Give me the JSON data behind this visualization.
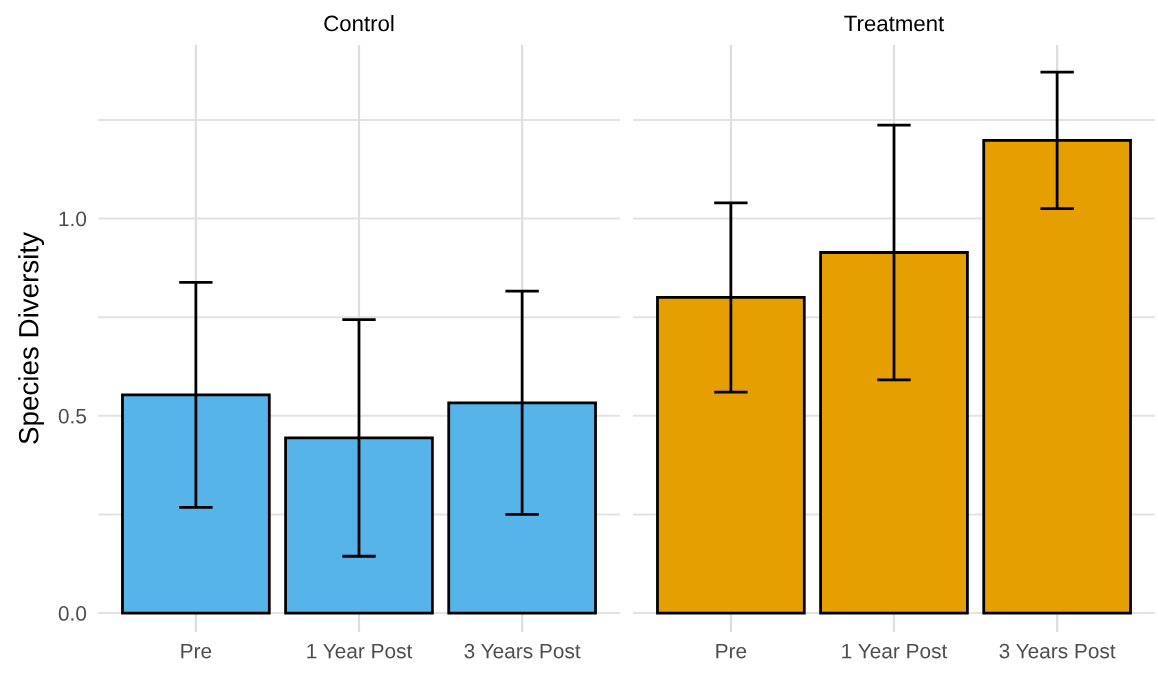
{
  "chart_data": [
    {
      "type": "bar",
      "title": "Control",
      "ylabel": "Species Diversity",
      "categories": [
        "Pre",
        "1 Year Post",
        "3 Years Post"
      ],
      "values": [
        0.553,
        0.444,
        0.533
      ],
      "errors": [
        0.285,
        0.3,
        0.283
      ],
      "color": "#56b4e9",
      "ylim": [
        -0.048,
        1.44
      ],
      "yticks": [
        {
          "value": 0,
          "label": "0.0"
        },
        {
          "value": 0.25,
          "label": null
        },
        {
          "value": 0.5,
          "label": "0.5"
        },
        {
          "value": 0.75,
          "label": null
        },
        {
          "value": 1.0,
          "label": "1.0"
        },
        {
          "value": 1.25,
          "label": null
        }
      ],
      "grid": true
    },
    {
      "type": "bar",
      "title": "Treatment",
      "categories": [
        "Pre",
        "1 Year Post",
        "3 Years Post"
      ],
      "values": [
        0.8,
        0.914,
        1.198
      ],
      "errors": [
        0.24,
        0.323,
        0.173
      ],
      "color": "#e69f00",
      "ylim": [
        -0.048,
        1.44
      ],
      "yticks": [
        {
          "value": 0,
          "label": null
        },
        {
          "value": 0.25,
          "label": null
        },
        {
          "value": 0.5,
          "label": null
        },
        {
          "value": 0.75,
          "label": null
        },
        {
          "value": 1.0,
          "label": null
        },
        {
          "value": 1.25,
          "label": null
        }
      ],
      "grid": true,
      "tick_labels": "x"
    }
  ]
}
